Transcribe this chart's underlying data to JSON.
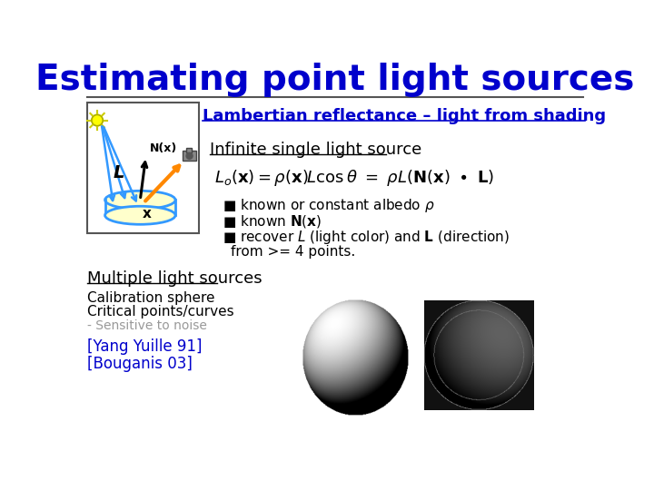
{
  "title": "Estimating point light sources",
  "title_color": "#0000CC",
  "title_fontsize": 28,
  "subtitle": "Lambertian reflectance – light from shading",
  "subtitle_color": "#0000CC",
  "subtitle_fontsize": 13,
  "infinite_source_label": "Infinite single light source",
  "multiple_label": "Multiple light sources",
  "calib_sphere": "Calibration sphere",
  "critical_pts": "Critical points/curves",
  "sensitive": "- Sensitive to noise",
  "ref1": "[Yang Yuille 91]",
  "ref2": "[Bouganis 03]",
  "bg_color": "#FFFFFF",
  "box_color": "#3399FF",
  "sun_color": "#FFFF00",
  "orange_color": "#FF8800",
  "blue_ray_color": "#3399FF"
}
